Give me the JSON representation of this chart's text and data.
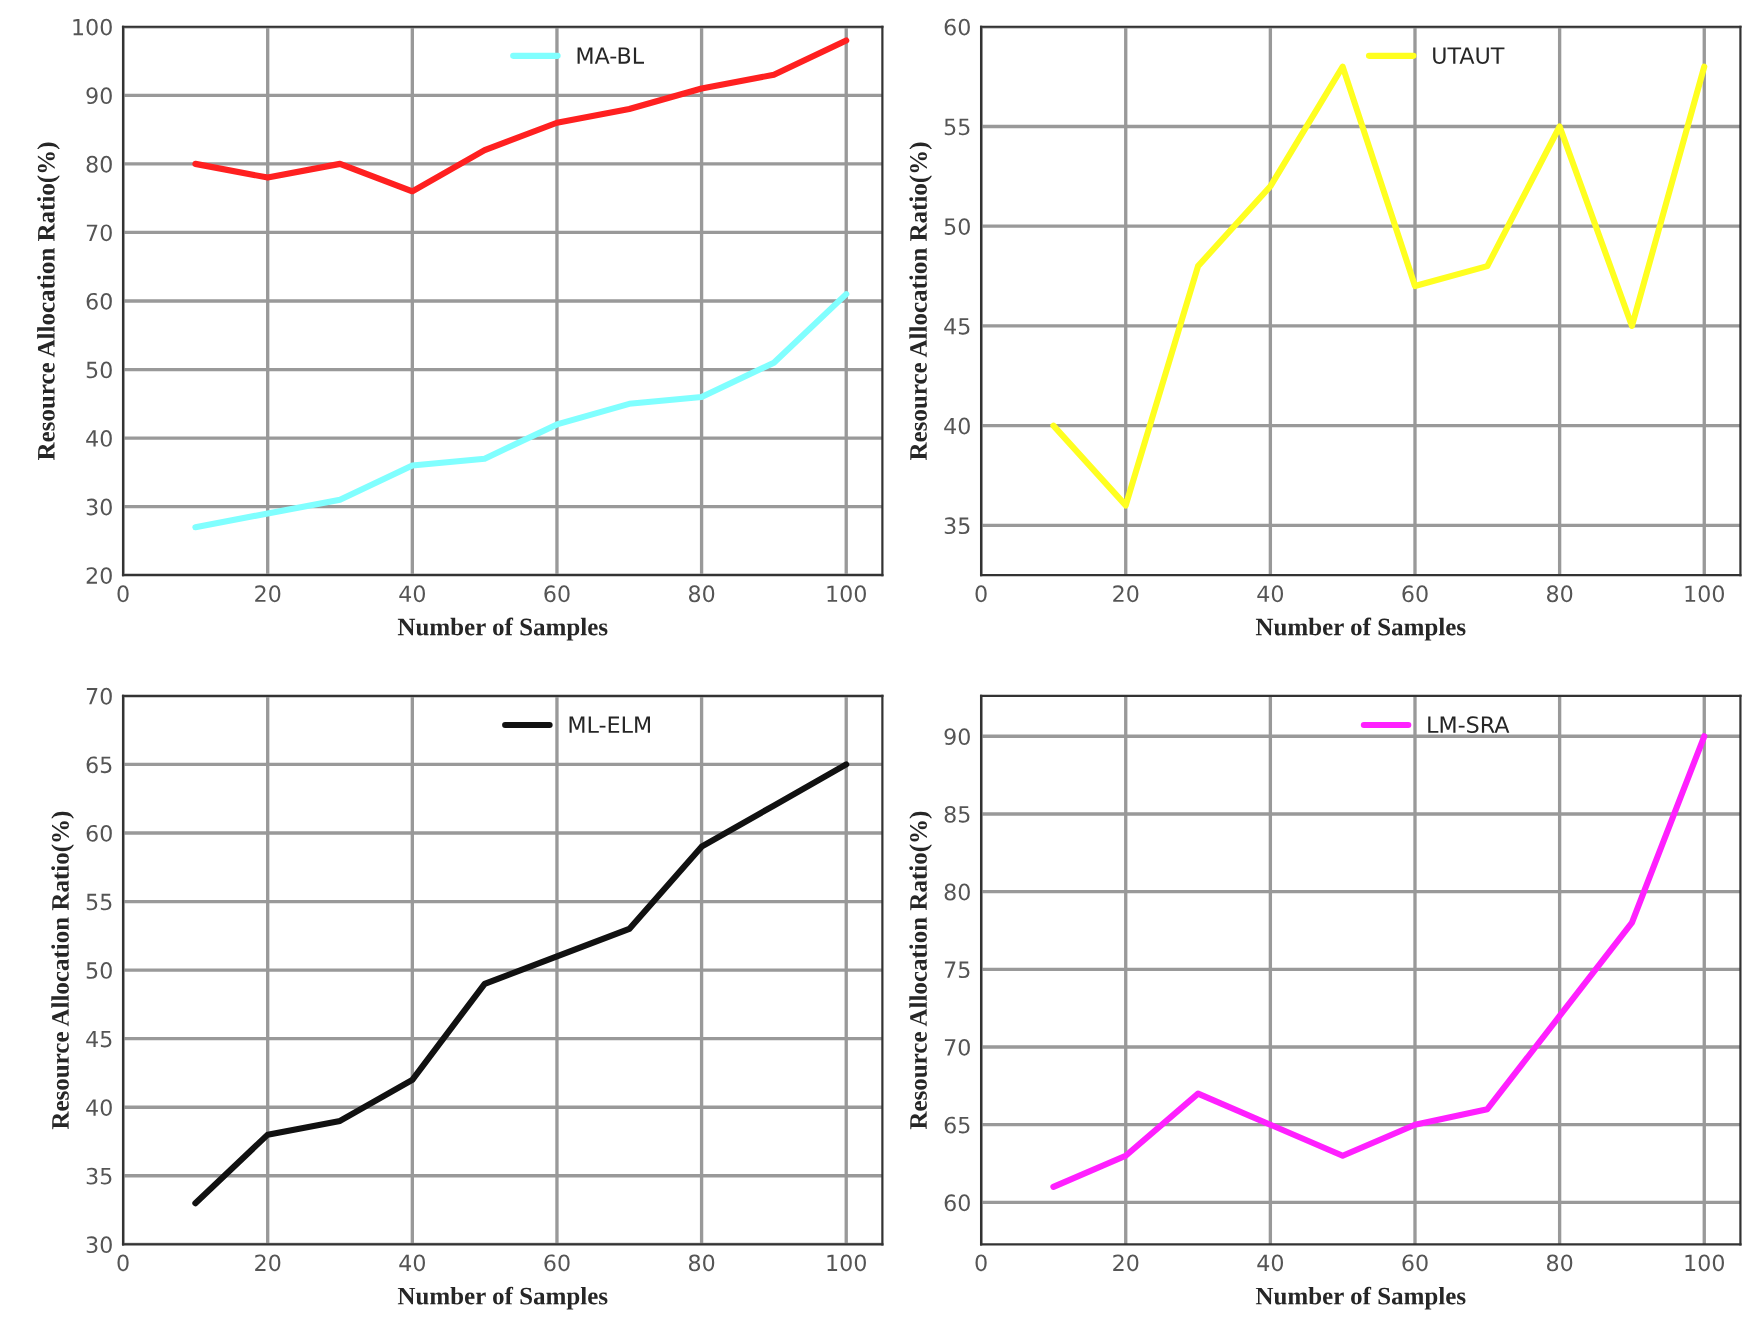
{
  "chart_data": [
    {
      "type": "line",
      "xlabel": "Number of Samples",
      "ylabel": "Resource Allocation Ratio(%)",
      "x": [
        10,
        20,
        30,
        40,
        50,
        60,
        70,
        80,
        90,
        100
      ],
      "xlim": [
        0,
        105
      ],
      "xticks": [
        0,
        20,
        40,
        60,
        80,
        100
      ],
      "ylim": [
        20,
        100
      ],
      "yticks": [
        20,
        30,
        40,
        50,
        60,
        70,
        80,
        90,
        100
      ],
      "grid": true,
      "legend": "top",
      "marker": "none",
      "line_style": "solid",
      "series": [
        {
          "color": "#ff2020",
          "values": [
            80,
            78,
            80,
            76,
            82,
            86,
            88,
            91,
            93,
            98
          ]
        },
        {
          "name": "MA-BL",
          "color": "#80ffff",
          "values": [
            27,
            29,
            31,
            36,
            37,
            42,
            45,
            46,
            51,
            61
          ]
        }
      ]
    },
    {
      "type": "line",
      "xlabel": "Number of Samples",
      "ylabel": "Resource Allocation Ratio(%)",
      "x": [
        10,
        20,
        30,
        40,
        50,
        60,
        70,
        80,
        90,
        100
      ],
      "xlim": [
        0,
        105
      ],
      "xticks": [
        0,
        20,
        40,
        60,
        80,
        100
      ],
      "ylim": [
        32.5,
        60
      ],
      "yticks": [
        35,
        40,
        45,
        50,
        55,
        60
      ],
      "grid": true,
      "legend": "top",
      "marker": "none",
      "line_style": "solid",
      "series": [
        {
          "name": "UTAUT",
          "color": "#ffff20",
          "values": [
            40,
            36,
            48,
            52,
            58,
            47,
            48,
            55,
            45,
            58
          ]
        }
      ]
    },
    {
      "type": "line",
      "xlabel": "Number of Samples",
      "ylabel": "Resource Allocation Ratio(%)",
      "x": [
        10,
        20,
        30,
        40,
        50,
        60,
        70,
        80,
        90,
        100
      ],
      "xlim": [
        0,
        105
      ],
      "xticks": [
        0,
        20,
        40,
        60,
        80,
        100
      ],
      "ylim": [
        30,
        70
      ],
      "yticks": [
        30,
        35,
        40,
        45,
        50,
        55,
        60,
        65,
        70
      ],
      "grid": true,
      "legend": "top",
      "marker": "none",
      "line_style": "solid",
      "series": [
        {
          "name": "ML-ELM",
          "color": "#111111",
          "values": [
            33,
            38,
            39,
            42,
            49,
            51,
            53,
            59,
            62,
            65
          ]
        }
      ]
    },
    {
      "type": "line",
      "xlabel": "Number of Samples",
      "ylabel": "Resource Allocation Ratio(%)",
      "x": [
        10,
        20,
        30,
        40,
        50,
        60,
        70,
        80,
        90,
        100
      ],
      "xlim": [
        0,
        105
      ],
      "xticks": [
        0,
        20,
        40,
        60,
        80,
        100
      ],
      "ylim": [
        57.3,
        92.6
      ],
      "yticks": [
        60,
        65,
        70,
        75,
        80,
        85,
        90
      ],
      "grid": true,
      "legend": "top",
      "marker": "none",
      "line_style": "solid",
      "series": [
        {
          "name": "LM-SRA",
          "color": "#ff20ff",
          "values": [
            61,
            63,
            67,
            65,
            63,
            65,
            66,
            72,
            78,
            90
          ]
        }
      ]
    }
  ]
}
